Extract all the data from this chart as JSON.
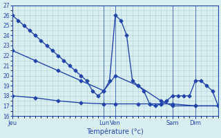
{
  "background_color": "#d8eef0",
  "grid_color": "#b0d0d4",
  "line_color": "#2244aa",
  "xlabel": "Température (°c)",
  "ylim": [
    16,
    27
  ],
  "yticks": [
    16,
    17,
    18,
    19,
    20,
    21,
    22,
    23,
    24,
    25,
    26,
    27
  ],
  "xlim": [
    0,
    108
  ],
  "xtick_positions": [
    0,
    48,
    54,
    84,
    96
  ],
  "xtick_labels": [
    "Jeu",
    "Lun",
    "Ven",
    "Sam",
    "Dim"
  ],
  "vline_positions": [
    48,
    54,
    84,
    96
  ],
  "series1_x": [
    0,
    3,
    6,
    9,
    12,
    15,
    18,
    21,
    24,
    27,
    30,
    33,
    36,
    39,
    42,
    45,
    48,
    51,
    54,
    57,
    60,
    63,
    66,
    69,
    72,
    75,
    78,
    81,
    84,
    87,
    90,
    93,
    96,
    99,
    102,
    105,
    108
  ],
  "series1_y": [
    26,
    25.5,
    25,
    24.5,
    24,
    23.5,
    23,
    22.5,
    22,
    21.5,
    21,
    20.5,
    20,
    19.5,
    18.5,
    18,
    18.5,
    19.5,
    26,
    25.5,
    24,
    19.5,
    19,
    18.5,
    17.2,
    17,
    17.2,
    17.5,
    18,
    18,
    18,
    18,
    19.5,
    19.5,
    19,
    18.5,
    17
  ],
  "series2_x": [
    0,
    12,
    24,
    36,
    48,
    54,
    66,
    78,
    84,
    96,
    108
  ],
  "series2_y": [
    22.5,
    21.5,
    20.5,
    19.5,
    18.5,
    20,
    19,
    17.5,
    17,
    17,
    17
  ],
  "series3_x": [
    0,
    12,
    24,
    36,
    48,
    54,
    66,
    78,
    84,
    96,
    108
  ],
  "series3_y": [
    18,
    17.8,
    17.5,
    17.3,
    17.2,
    17.2,
    17.2,
    17.2,
    17.2,
    17,
    17
  ]
}
